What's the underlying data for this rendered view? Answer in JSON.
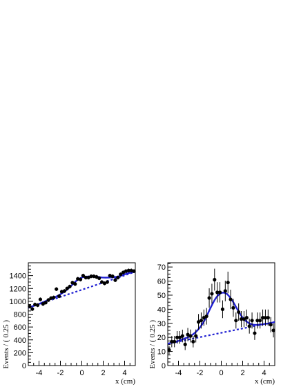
{
  "chart_data": [
    {
      "type": "scatter",
      "xlabel": "x (cm)",
      "ylabel": "Events / ( 0.25 )",
      "xlim": [
        -5,
        5
      ],
      "ylim": [
        0,
        1600
      ],
      "xticks": [
        -4,
        -2,
        0,
        2,
        4
      ],
      "yticks": [
        0,
        200,
        400,
        600,
        800,
        1000,
        1200,
        1400
      ],
      "grid": false,
      "data_color": "#000000",
      "fit_color": "#1f1fd2",
      "series": [
        {
          "kind": "points",
          "x": [
            -4.875,
            -4.625,
            -4.375,
            -4.125,
            -3.875,
            -3.625,
            -3.375,
            -3.125,
            -2.875,
            -2.625,
            -2.375,
            -2.125,
            -1.875,
            -1.625,
            -1.375,
            -1.125,
            -0.875,
            -0.625,
            -0.375,
            -0.125,
            0.125,
            0.375,
            0.625,
            0.875,
            1.125,
            1.375,
            1.625,
            1.875,
            2.125,
            2.375,
            2.625,
            2.875,
            3.125,
            3.375,
            3.625,
            3.875,
            4.125,
            4.375,
            4.625,
            4.875
          ],
          "y": [
            920,
            880,
            950,
            940,
            1030,
            960,
            980,
            1020,
            1050,
            1060,
            1190,
            1080,
            1150,
            1160,
            1200,
            1230,
            1290,
            1270,
            1350,
            1340,
            1400,
            1370,
            1370,
            1390,
            1390,
            1380,
            1360,
            1300,
            1280,
            1300,
            1400,
            1390,
            1330,
            1370,
            1420,
            1450,
            1470,
            1480,
            1480,
            1470
          ],
          "yerr": 30
        },
        {
          "kind": "fit-total",
          "x": [
            -5,
            -4.5,
            -4,
            -3.5,
            -3,
            -2.5,
            -2,
            -1.5,
            -1,
            -0.5,
            0,
            0.5,
            1,
            1.5,
            2,
            2.5,
            3,
            3.5,
            4,
            4.5,
            5
          ],
          "y": [
            900,
            930,
            960,
            995,
            1030,
            1065,
            1110,
            1165,
            1240,
            1320,
            1370,
            1385,
            1385,
            1380,
            1370,
            1370,
            1375,
            1390,
            1420,
            1445,
            1460
          ]
        },
        {
          "kind": "fit-background",
          "x": [
            -5,
            5
          ],
          "y": [
            900,
            1460
          ]
        }
      ]
    },
    {
      "type": "scatter",
      "xlabel": "x (cm)",
      "ylabel": "Events / ( 0.25 )",
      "xlim": [
        -5,
        5
      ],
      "ylim": [
        0,
        73
      ],
      "xticks": [
        -4,
        -2,
        0,
        2,
        4
      ],
      "yticks": [
        0,
        10,
        20,
        30,
        40,
        50,
        60,
        70
      ],
      "grid": false,
      "data_color": "#000000",
      "fit_color": "#1f1fd2",
      "series": [
        {
          "kind": "points",
          "x": [
            -4.875,
            -4.625,
            -4.375,
            -4.125,
            -3.875,
            -3.625,
            -3.375,
            -3.125,
            -2.875,
            -2.625,
            -2.375,
            -2.125,
            -1.875,
            -1.625,
            -1.375,
            -1.125,
            -0.875,
            -0.625,
            -0.375,
            -0.125,
            0.125,
            0.375,
            0.625,
            0.875,
            1.125,
            1.375,
            1.625,
            1.875,
            2.125,
            2.375,
            2.625,
            2.875,
            3.125,
            3.375,
            3.625,
            3.875,
            4.125,
            4.375,
            4.625,
            4.875
          ],
          "y": [
            11,
            17,
            17,
            20,
            20,
            21,
            15,
            22,
            21,
            17,
            21,
            31,
            32,
            34,
            35,
            48,
            51,
            61,
            52,
            52,
            40,
            53,
            59,
            47,
            41,
            32,
            38,
            33,
            33,
            34,
            28,
            32,
            23,
            32,
            32,
            34,
            34,
            34,
            29,
            25
          ],
          "yerr": [
            3,
            4,
            4,
            4.5,
            4.5,
            4.5,
            4,
            4.7,
            4.6,
            4.1,
            4.6,
            5.6,
            5.7,
            5.8,
            5.9,
            6.9,
            7.1,
            7.8,
            7.2,
            7.2,
            6.3,
            7.3,
            7.7,
            6.9,
            6.4,
            5.7,
            6.2,
            5.7,
            5.7,
            5.8,
            5.3,
            5.7,
            4.8,
            5.7,
            5.7,
            5.8,
            5.8,
            5.8,
            5.4,
            5
          ]
        },
        {
          "kind": "fit-total",
          "x": [
            -5,
            -4.5,
            -4,
            -3.5,
            -3,
            -2.5,
            -2,
            -1.5,
            -1,
            -0.5,
            0,
            0.5,
            1,
            1.5,
            2,
            2.5,
            3,
            3.5,
            4,
            4.5,
            5
          ],
          "y": [
            15.5,
            16.5,
            17.5,
            19,
            20.5,
            23,
            27,
            33,
            41,
            48,
            51.5,
            51,
            46.5,
            40,
            34,
            30.5,
            29,
            29,
            29.5,
            30,
            31
          ]
        },
        {
          "kind": "fit-background",
          "x": [
            -5,
            5
          ],
          "y": [
            15.5,
            31
          ]
        }
      ]
    }
  ]
}
